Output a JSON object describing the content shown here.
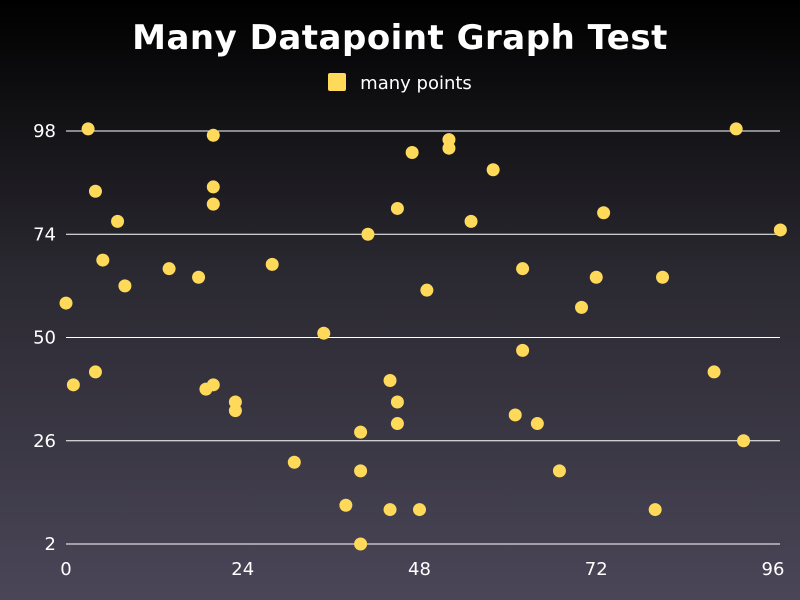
{
  "colors": {
    "series": "#ffd95a",
    "grid": "#ffffff",
    "text": "#ffffff"
  },
  "chart_data": {
    "type": "scatter",
    "title": "Many Datapoint Graph Test",
    "legend_position": "top-center",
    "grid": "horizontal",
    "xlim": [
      0,
      96
    ],
    "ylim": [
      2,
      98
    ],
    "x_ticks": [
      0,
      24,
      48,
      72,
      96
    ],
    "y_ticks": [
      2,
      26,
      50,
      74,
      98
    ],
    "x_tick_labels": [
      "0",
      "24",
      "48",
      "72",
      "96"
    ],
    "y_tick_labels": [
      "2",
      "26",
      "50",
      "74",
      "98"
    ],
    "series": [
      {
        "name": "many points",
        "points": [
          [
            0,
            58
          ],
          [
            1,
            39
          ],
          [
            3,
            98.5
          ],
          [
            4,
            84
          ],
          [
            4,
            42
          ],
          [
            5,
            68
          ],
          [
            7,
            77
          ],
          [
            8,
            62
          ],
          [
            14,
            66
          ],
          [
            18,
            64
          ],
          [
            19,
            38
          ],
          [
            20,
            39
          ],
          [
            20,
            97
          ],
          [
            20,
            85
          ],
          [
            20,
            81
          ],
          [
            23,
            35
          ],
          [
            23,
            33
          ],
          [
            28,
            67
          ],
          [
            31,
            21
          ],
          [
            35,
            51
          ],
          [
            38,
            11
          ],
          [
            40,
            2
          ],
          [
            40,
            28
          ],
          [
            40,
            19
          ],
          [
            41,
            74
          ],
          [
            44,
            40
          ],
          [
            44,
            10
          ],
          [
            45,
            80
          ],
          [
            45,
            35
          ],
          [
            45,
            30
          ],
          [
            47,
            93
          ],
          [
            48,
            10
          ],
          [
            49,
            61
          ],
          [
            52,
            96
          ],
          [
            52,
            94
          ],
          [
            55,
            77
          ],
          [
            58,
            89
          ],
          [
            61,
            32
          ],
          [
            62,
            66
          ],
          [
            62,
            47
          ],
          [
            64,
            30
          ],
          [
            67,
            19
          ],
          [
            70,
            57
          ],
          [
            72,
            64
          ],
          [
            73,
            79
          ],
          [
            80,
            10
          ],
          [
            81,
            64
          ],
          [
            88,
            42
          ],
          [
            91,
            98.5
          ],
          [
            92,
            26
          ],
          [
            97,
            75
          ]
        ]
      }
    ]
  }
}
